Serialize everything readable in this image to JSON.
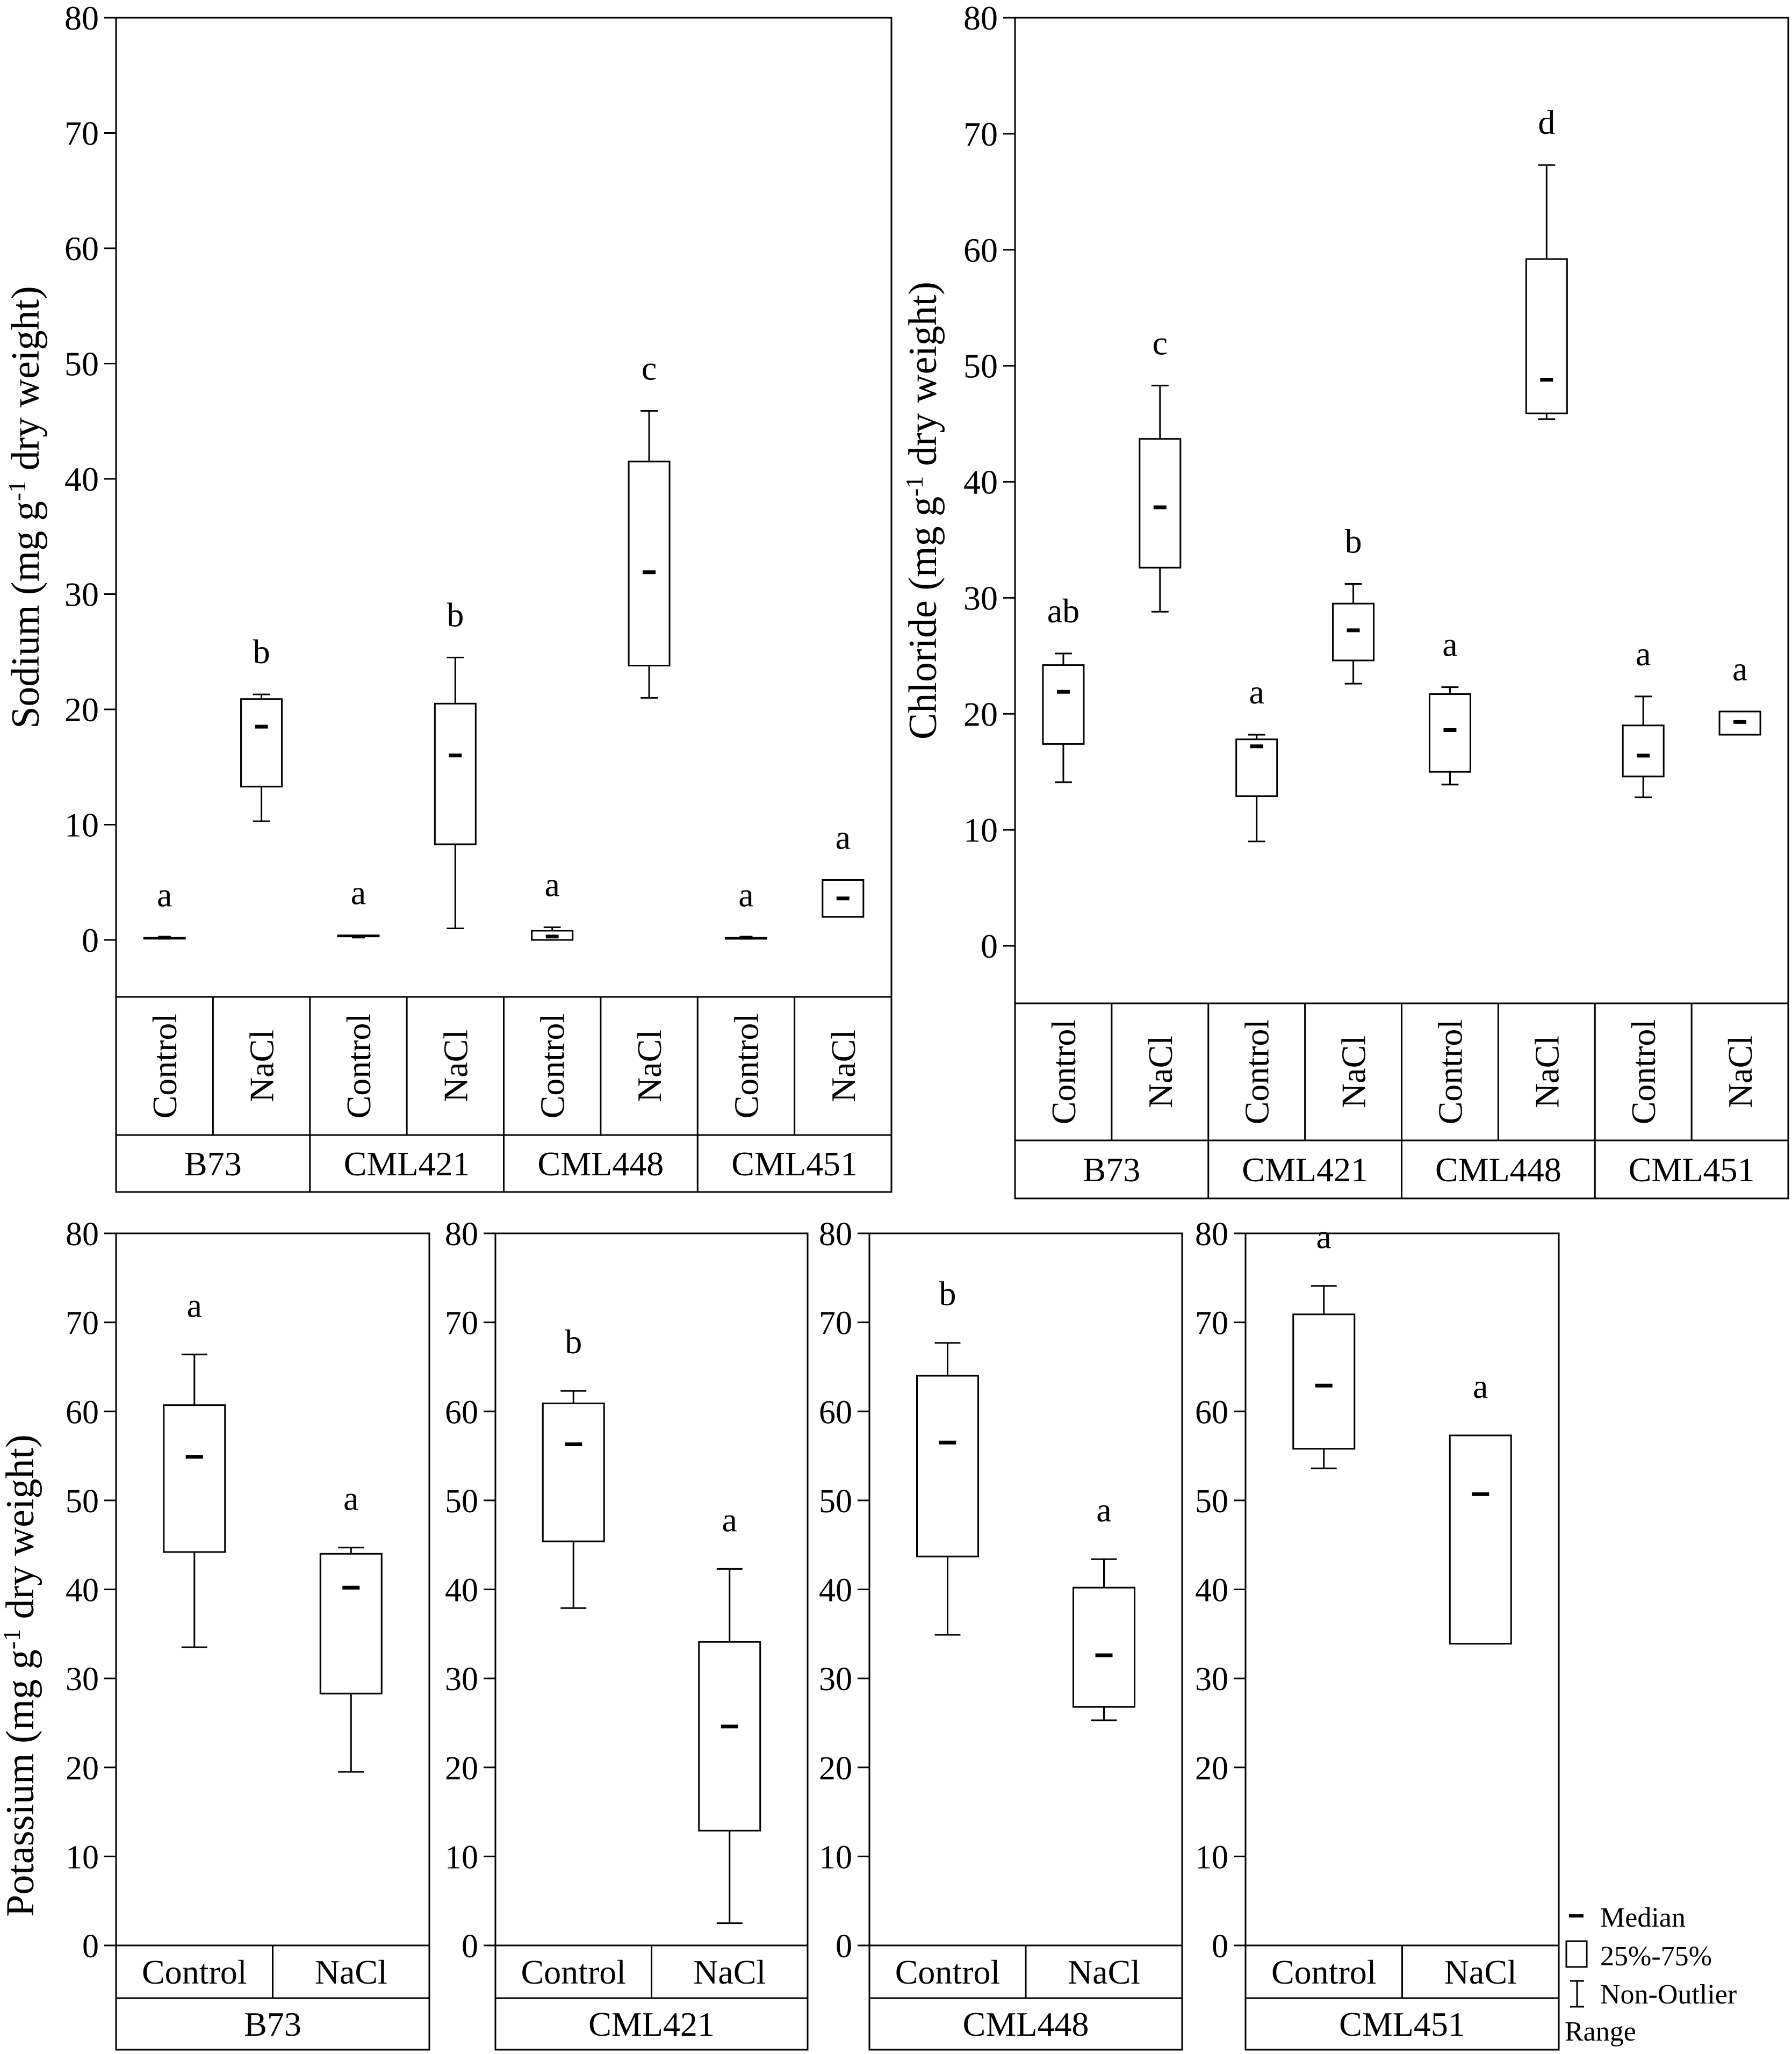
{
  "chart_data": [
    {
      "type": "box",
      "panel": "sodium",
      "ylabel": "Sodium (mg g-1 dry weight)",
      "ylabel_parts": {
        "before": "Sodium (mg g",
        "sup": "-1",
        "after": " dry weight)"
      },
      "ylim": [
        -5,
        80
      ],
      "yticks": [
        0,
        10,
        20,
        30,
        40,
        50,
        60,
        70,
        80
      ],
      "genotypes": [
        "B73",
        "CML421",
        "CML448",
        "CML451"
      ],
      "treatments": [
        "Control",
        "NaCl"
      ],
      "boxes": [
        {
          "genotype": "B73",
          "treatment": "Control",
          "min": 0.2,
          "q1": 0.2,
          "median": 0.2,
          "q3": 0.2,
          "max": 0.2,
          "letter": "a"
        },
        {
          "genotype": "B73",
          "treatment": "NaCl",
          "min": 10.3,
          "q1": 13.3,
          "median": 18.5,
          "q3": 20.9,
          "max": 21.3,
          "letter": "b"
        },
        {
          "genotype": "CML421",
          "treatment": "Control",
          "min": 0.3,
          "q1": 0.3,
          "median": 0.3,
          "q3": 0.4,
          "max": 0.4,
          "letter": "a"
        },
        {
          "genotype": "CML421",
          "treatment": "NaCl",
          "min": 1.0,
          "q1": 8.3,
          "median": 16.0,
          "q3": 20.5,
          "max": 24.5,
          "letter": "b"
        },
        {
          "genotype": "CML448",
          "treatment": "Control",
          "min": 0.0,
          "q1": 0.0,
          "median": 0.3,
          "q3": 0.8,
          "max": 1.1,
          "letter": "a"
        },
        {
          "genotype": "CML448",
          "treatment": "NaCl",
          "min": 21.0,
          "q1": 23.8,
          "median": 31.9,
          "q3": 41.5,
          "max": 45.9,
          "letter": "c"
        },
        {
          "genotype": "CML451",
          "treatment": "Control",
          "min": 0.1,
          "q1": 0.1,
          "median": 0.2,
          "q3": 0.2,
          "max": 0.2,
          "letter": "a"
        },
        {
          "genotype": "CML451",
          "treatment": "NaCl",
          "min": 2.0,
          "q1": 2.0,
          "median": 3.6,
          "q3": 5.2,
          "max": 5.2,
          "letter": "a"
        }
      ]
    },
    {
      "type": "box",
      "panel": "chloride",
      "ylabel": "Chloride (mg g-1 dry weight)",
      "ylabel_parts": {
        "before": "Chloride (mg g",
        "sup": "-1",
        "after": " dry weight)"
      },
      "ylim": [
        -5,
        80
      ],
      "yticks": [
        0,
        10,
        20,
        30,
        40,
        50,
        60,
        70,
        80
      ],
      "genotypes": [
        "B73",
        "CML421",
        "CML448",
        "CML451"
      ],
      "treatments": [
        "Control",
        "NaCl"
      ],
      "boxes": [
        {
          "genotype": "B73",
          "treatment": "Control",
          "min": 14.1,
          "q1": 17.4,
          "median": 21.9,
          "q3": 24.2,
          "max": 25.2,
          "letter": "ab"
        },
        {
          "genotype": "B73",
          "treatment": "NaCl",
          "min": 28.8,
          "q1": 32.6,
          "median": 37.8,
          "q3": 43.7,
          "max": 48.3,
          "letter": "c"
        },
        {
          "genotype": "CML421",
          "treatment": "Control",
          "min": 9.0,
          "q1": 12.9,
          "median": 17.2,
          "q3": 17.8,
          "max": 18.2,
          "letter": "a"
        },
        {
          "genotype": "CML421",
          "treatment": "NaCl",
          "min": 22.6,
          "q1": 24.6,
          "median": 27.2,
          "q3": 29.5,
          "max": 31.2,
          "letter": "b"
        },
        {
          "genotype": "CML448",
          "treatment": "Control",
          "min": 13.9,
          "q1": 15.0,
          "median": 18.6,
          "q3": 21.7,
          "max": 22.3,
          "letter": "a"
        },
        {
          "genotype": "CML448",
          "treatment": "NaCl",
          "min": 45.4,
          "q1": 45.9,
          "median": 48.8,
          "q3": 59.2,
          "max": 67.3,
          "letter": "d"
        },
        {
          "genotype": "CML451",
          "treatment": "Control",
          "min": 12.8,
          "q1": 14.6,
          "median": 16.4,
          "q3": 19.0,
          "max": 21.5,
          "letter": "a"
        },
        {
          "genotype": "CML451",
          "treatment": "NaCl",
          "min": 18.2,
          "q1": 18.2,
          "median": 19.3,
          "q3": 20.2,
          "max": 20.2,
          "letter": "a"
        }
      ]
    },
    {
      "type": "box",
      "panel": "potassium",
      "ylabel": "Potassium (mg g-1 dry weight)",
      "ylabel_parts": {
        "before": "Potassium (mg g",
        "sup": "-1",
        "after": " dry weight)"
      },
      "ylim": [
        0,
        80
      ],
      "yticks": [
        0,
        10,
        20,
        30,
        40,
        50,
        60,
        70,
        80
      ],
      "subpanels": [
        {
          "genotype": "B73",
          "boxes": [
            {
              "treatment": "Control",
              "min": 33.5,
              "q1": 44.2,
              "median": 54.9,
              "q3": 60.7,
              "max": 66.4,
              "letter": "a"
            },
            {
              "treatment": "NaCl",
              "min": 19.5,
              "q1": 28.3,
              "median": 40.2,
              "q3": 44.0,
              "max": 44.7,
              "letter": "a"
            }
          ]
        },
        {
          "genotype": "CML421",
          "boxes": [
            {
              "treatment": "Control",
              "min": 37.9,
              "q1": 45.4,
              "median": 56.3,
              "q3": 60.9,
              "max": 62.3,
              "letter": "b"
            },
            {
              "treatment": "NaCl",
              "min": 2.5,
              "q1": 12.9,
              "median": 24.6,
              "q3": 34.1,
              "max": 42.3,
              "letter": "a"
            }
          ]
        },
        {
          "genotype": "CML448",
          "boxes": [
            {
              "treatment": "Control",
              "min": 34.9,
              "q1": 43.7,
              "median": 56.5,
              "q3": 64.0,
              "max": 67.7,
              "letter": "b"
            },
            {
              "treatment": "NaCl",
              "min": 25.3,
              "q1": 26.8,
              "median": 32.6,
              "q3": 40.2,
              "max": 43.4,
              "letter": "a"
            }
          ]
        },
        {
          "genotype": "CML451",
          "boxes": [
            {
              "treatment": "Control",
              "min": 53.6,
              "q1": 55.8,
              "median": 62.9,
              "q3": 70.9,
              "max": 74.1,
              "letter": "a"
            },
            {
              "treatment": "NaCl",
              "min": 33.9,
              "q1": 33.9,
              "median": 50.7,
              "q3": 57.3,
              "max": 57.3,
              "letter": "a"
            }
          ]
        }
      ],
      "treatments": [
        "Control",
        "NaCl"
      ]
    }
  ],
  "legend": {
    "median": "Median",
    "box": "25%-75%",
    "whisker_line1": "Non-Outlier",
    "whisker_line2": "Range"
  }
}
